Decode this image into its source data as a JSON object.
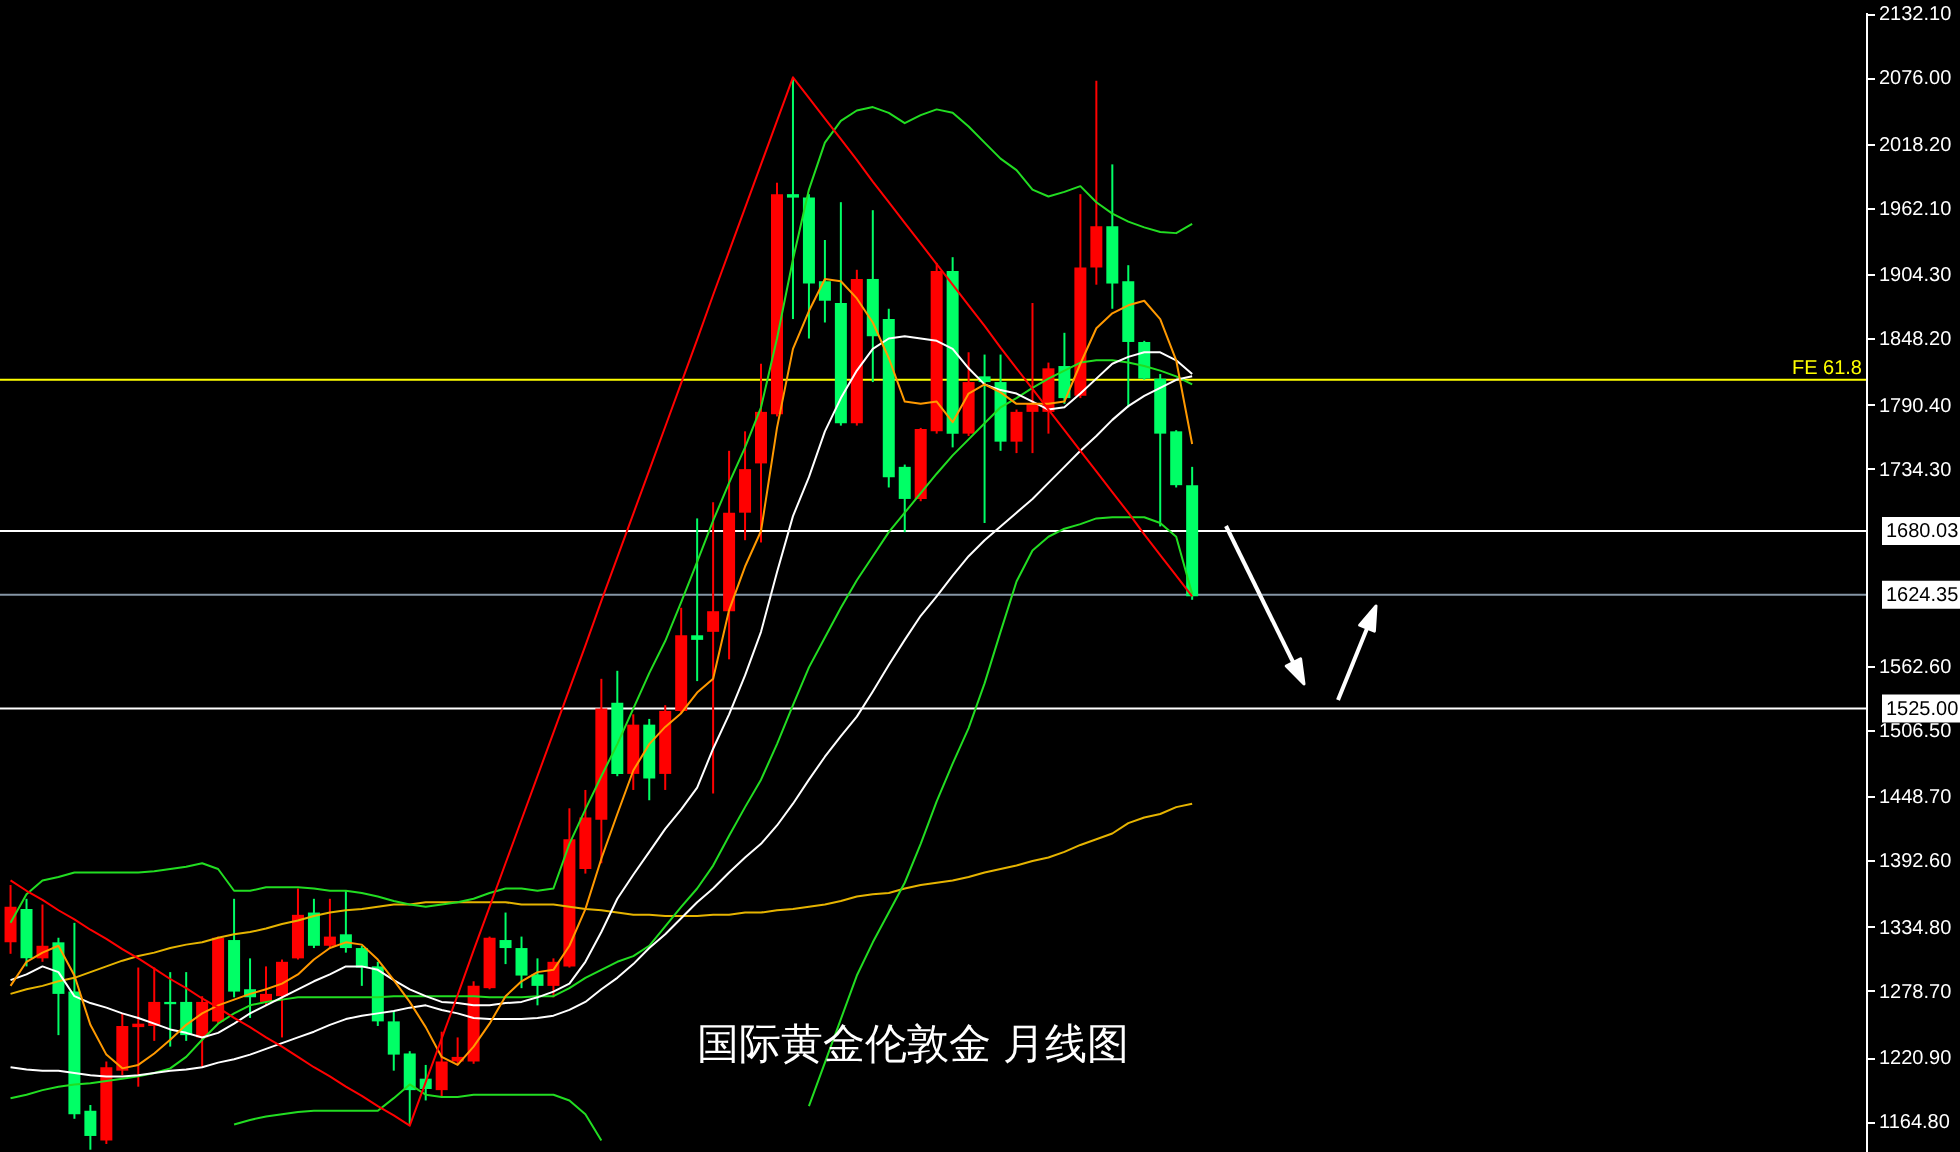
{
  "chart_data": {
    "type": "candlestick",
    "title": "国际黄金伦敦金 月线图",
    "categories": [
      null,
      null,
      null,
      null,
      null,
      null,
      null,
      null,
      null,
      null,
      null,
      null,
      null,
      null,
      null,
      null,
      null,
      null,
      null,
      null,
      null,
      null,
      null,
      null,
      null,
      null,
      null,
      null,
      null,
      null,
      null,
      null,
      null,
      null,
      null,
      null,
      null,
      null,
      null,
      null,
      null,
      null,
      null,
      null,
      null,
      null,
      null,
      null,
      null,
      null,
      null,
      null,
      null,
      null,
      null,
      null,
      null,
      null,
      null,
      null,
      null,
      null,
      null,
      null,
      null,
      null,
      null,
      null,
      null,
      null,
      null,
      null,
      null,
      null,
      null
    ],
    "ohlc": [
      [
        1321,
        1371,
        1311,
        1352
      ],
      [
        1350,
        1359,
        1300,
        1307
      ],
      [
        1307,
        1354,
        1304,
        1318
      ],
      [
        1321,
        1325,
        1240,
        1276
      ],
      [
        1278,
        1338,
        1167,
        1171
      ],
      [
        1174,
        1179,
        1140,
        1152
      ],
      [
        1148,
        1217,
        1145,
        1212
      ],
      [
        1209,
        1259,
        1205,
        1248
      ],
      [
        1247,
        1299,
        1195,
        1250
      ],
      [
        1248,
        1299,
        1235,
        1269
      ],
      [
        1269,
        1295,
        1230,
        1267
      ],
      [
        1269,
        1295,
        1235,
        1240
      ],
      [
        1238,
        1274,
        1212,
        1269
      ],
      [
        1252,
        1326,
        1250,
        1325
      ],
      [
        1323,
        1359,
        1273,
        1278
      ],
      [
        1280,
        1307,
        1255,
        1273
      ],
      [
        1269,
        1300,
        1266,
        1276
      ],
      [
        1274,
        1306,
        1238,
        1304
      ],
      [
        1307,
        1368,
        1306,
        1345
      ],
      [
        1347,
        1359,
        1316,
        1318
      ],
      [
        1318,
        1359,
        1316,
        1326
      ],
      [
        1328,
        1366,
        1312,
        1316
      ],
      [
        1316,
        1318,
        1283,
        1299
      ],
      [
        1300,
        1304,
        1248,
        1252
      ],
      [
        1252,
        1261,
        1209,
        1223
      ],
      [
        1224,
        1226,
        1162,
        1192
      ],
      [
        1202,
        1214,
        1183,
        1193
      ],
      [
        1192,
        1243,
        1186,
        1217
      ],
      [
        1217,
        1238,
        1214,
        1221
      ],
      [
        1217,
        1287,
        1215,
        1283
      ],
      [
        1281,
        1326,
        1280,
        1325
      ],
      [
        1323,
        1347,
        1302,
        1316
      ],
      [
        1316,
        1326,
        1281,
        1292
      ],
      [
        1293,
        1307,
        1266,
        1283
      ],
      [
        1283,
        1307,
        1273,
        1304
      ],
      [
        1300,
        1438,
        1299,
        1411
      ],
      [
        1385,
        1454,
        1381,
        1430
      ],
      [
        1428,
        1551,
        1390,
        1525
      ],
      [
        1530,
        1558,
        1466,
        1468
      ],
      [
        1468,
        1520,
        1454,
        1511
      ],
      [
        1511,
        1516,
        1445,
        1464
      ],
      [
        1468,
        1528,
        1454,
        1523
      ],
      [
        1523,
        1613,
        1521,
        1589
      ],
      [
        1589,
        1691,
        1549,
        1585
      ],
      [
        1592,
        1705,
        1451,
        1610
      ],
      [
        1610,
        1750,
        1568,
        1696
      ],
      [
        1696,
        1767,
        1672,
        1734
      ],
      [
        1739,
        1826,
        1670,
        1784
      ],
      [
        1782,
        1984,
        1780,
        1974
      ],
      [
        1974,
        2076,
        1865,
        1971
      ],
      [
        1971,
        1974,
        1848,
        1896
      ],
      [
        1898,
        1934,
        1862,
        1881
      ],
      [
        1879,
        1967,
        1772,
        1774
      ],
      [
        1774,
        1908,
        1772,
        1900
      ],
      [
        1900,
        1960,
        1810,
        1850
      ],
      [
        1865,
        1874,
        1718,
        1727
      ],
      [
        1736,
        1738,
        1679,
        1708
      ],
      [
        1708,
        1770,
        1706,
        1769
      ],
      [
        1767,
        1914,
        1765,
        1907
      ],
      [
        1907,
        1919,
        1753,
        1765
      ],
      [
        1765,
        1836,
        1763,
        1810
      ],
      [
        1815,
        1834,
        1687,
        1810
      ],
      [
        1810,
        1834,
        1750,
        1758
      ],
      [
        1758,
        1786,
        1748,
        1784
      ],
      [
        1784,
        1879,
        1748,
        1791
      ],
      [
        1784,
        1827,
        1765,
        1822
      ],
      [
        1824,
        1853,
        1791,
        1796
      ],
      [
        1798,
        1974,
        1796,
        1910
      ],
      [
        1910,
        2073,
        1895,
        1946
      ],
      [
        1946,
        2000,
        1874,
        1896
      ],
      [
        1898,
        1912,
        1788,
        1845
      ],
      [
        1845,
        1846,
        1812,
        1813
      ],
      [
        1813,
        1817,
        1684,
        1765
      ],
      [
        1767,
        1768,
        1718,
        1720
      ],
      [
        1720,
        1736,
        1620,
        1623
      ]
    ],
    "colors": [
      "#ff0000",
      "#00ff66",
      "#ff0000",
      "#00ff66",
      "#00ff66",
      "#00ff66",
      "#ff0000",
      "#ff0000",
      "#ff0000",
      "#ff0000",
      "#00ff66",
      "#00ff66",
      "#ff0000",
      "#ff0000",
      "#00ff66",
      "#00ff66",
      "#ff0000",
      "#ff0000",
      "#ff0000",
      "#00ff66",
      "#ff0000",
      "#00ff66",
      "#00ff66",
      "#00ff66",
      "#00ff66",
      "#00ff66",
      "#00ff66",
      "#ff0000",
      "#ff0000",
      "#ff0000",
      "#ff0000",
      "#00ff66",
      "#00ff66",
      "#00ff66",
      "#ff0000",
      "#ff0000",
      "#ff0000",
      "#ff0000",
      "#00ff66",
      "#ff0000",
      "#00ff66",
      "#ff0000",
      "#ff0000",
      "#00ff66",
      "#ff0000",
      "#ff0000",
      "#ff0000",
      "#ff0000",
      "#ff0000",
      "#00ff66",
      "#00ff66",
      "#00ff66",
      "#00ff66",
      "#ff0000",
      "#00ff66",
      "#00ff66",
      "#00ff66",
      "#ff0000",
      "#ff0000",
      "#00ff66",
      "#ff0000",
      "#00ff66",
      "#00ff66",
      "#ff0000",
      "#ff0000",
      "#ff0000",
      "#00ff66",
      "#ff0000",
      "#ff0000",
      "#00ff66",
      "#00ff66",
      "#00ff66",
      "#00ff66",
      "#00ff66",
      "#00ff66"
    ],
    "series": [
      {
        "type": "line",
        "color": "#e6b400",
        "values": [
          1276,
          1280,
          1283,
          1287,
          1290,
          1295,
          1300,
          1305,
          1309,
          1312,
          1316,
          1319,
          1321,
          1325,
          1328,
          1330,
          1333,
          1337,
          1340,
          1344,
          1347,
          1349,
          1350,
          1352,
          1354,
          1354,
          1356,
          1356,
          1356,
          1356,
          1356,
          1356,
          1354,
          1354,
          1354,
          1352,
          1350,
          1349,
          1347,
          1345,
          1345,
          1344,
          1344,
          1344,
          1345,
          1345,
          1347,
          1347,
          1349,
          1350,
          1352,
          1354,
          1357,
          1361,
          1363,
          1364,
          1368,
          1371,
          1373,
          1375,
          1378,
          1382,
          1385,
          1388,
          1392,
          1395,
          1400,
          1406,
          1411,
          1416,
          1425,
          1430,
          1433,
          1439,
          1442
        ]
      },
      {
        "type": "line",
        "color": "#22dd22",
        "values": [
          1338,
          1363,
          1375,
          1378,
          1382,
          1382,
          1382,
          1382,
          1382,
          1383,
          1385,
          1387,
          1390,
          1385,
          1366,
          1366,
          1369,
          1369,
          1369,
          1368,
          1366,
          1366,
          1364,
          1361,
          1357,
          1354,
          1352,
          1354,
          1356,
          1359,
          1364,
          1368,
          1368,
          1366,
          1368,
          1407,
          1437,
          1466,
          1494,
          1525,
          1556,
          1584,
          1618,
          1653,
          1689,
          1722,
          1753,
          1788,
          1848,
          1917,
          1978,
          2019,
          2038,
          2047,
          2050,
          2045,
          2036,
          2043,
          2048,
          2045,
          2033,
          2019,
          2005,
          1995,
          1978,
          1972,
          1976,
          1981,
          1967,
          1957,
          1950,
          1945,
          1941,
          1940,
          1948
        ]
      },
      {
        "type": "line",
        "color": "#22dd22",
        "values": [
          1185,
          1188,
          1192,
          1195,
          1197,
          1198,
          1200,
          1202,
          1204,
          1207,
          1211,
          1221,
          1236,
          1250,
          1259,
          1266,
          1269,
          1271,
          1273,
          1273,
          1273,
          1273,
          1273,
          1273,
          1274,
          1274,
          1274,
          1274,
          1274,
          1274,
          1273,
          1273,
          1273,
          1274,
          1274,
          1281,
          1290,
          1297,
          1304,
          1309,
          1318,
          1335,
          1352,
          1368,
          1388,
          1414,
          1439,
          1463,
          1494,
          1528,
          1561,
          1587,
          1613,
          1637,
          1658,
          1679,
          1696,
          1713,
          1730,
          1746,
          1760,
          1774,
          1788,
          1796,
          1805,
          1813,
          1820,
          1827,
          1829,
          1829,
          1827,
          1824,
          1820,
          1815,
          1808
        ]
      },
      {
        "type": "line",
        "color": "#22dd22",
        "values": [
          null,
          null,
          null,
          null,
          null,
          null,
          null,
          null,
          null,
          null,
          null,
          null,
          null,
          null,
          1162,
          1166,
          1169,
          1171,
          1173,
          1174,
          1174,
          1174,
          1174,
          1174,
          1185,
          1197,
          1188,
          1186,
          1186,
          1188,
          1188,
          1188,
          1188,
          1188,
          1188,
          1183,
          1171,
          1148,
          null,
          null,
          null,
          null,
          null,
          null,
          null,
          null,
          null,
          null,
          null,
          null,
          1178,
          1216,
          1254,
          1292,
          1321,
          1347,
          1373,
          1407,
          1444,
          1477,
          1508,
          1547,
          1592,
          1636,
          1663,
          1675,
          1682,
          1686,
          1691,
          1692,
          1692,
          1692,
          1687,
          1675,
          1625
        ]
      },
      {
        "type": "line",
        "color": "#ffffff",
        "values": [
          1212,
          1210,
          1209,
          1209,
          1207,
          1205,
          1204,
          1204,
          1205,
          1207,
          1209,
          1210,
          1212,
          1216,
          1219,
          1223,
          1228,
          1233,
          1238,
          1243,
          1249,
          1254,
          1257,
          1259,
          1261,
          1264,
          1266,
          1262,
          1259,
          1255,
          1254,
          1254,
          1254,
          1255,
          1257,
          1262,
          1269,
          1280,
          1290,
          1302,
          1316,
          1328,
          1342,
          1356,
          1368,
          1382,
          1395,
          1407,
          1423,
          1442,
          1463,
          1483,
          1501,
          1518,
          1540,
          1563,
          1585,
          1606,
          1623,
          1641,
          1658,
          1672,
          1684,
          1696,
          1708,
          1722,
          1736,
          1750,
          1763,
          1777,
          1789,
          1798,
          1805,
          1812,
          1815
        ]
      },
      {
        "type": "line",
        "color": "#ffffff",
        "values": [
          1288,
          1293,
          1300,
          1295,
          1274,
          1268,
          1264,
          1259,
          1255,
          1250,
          1245,
          1242,
          1238,
          1242,
          1250,
          1259,
          1266,
          1273,
          1280,
          1287,
          1293,
          1300,
          1300,
          1297,
          1288,
          1280,
          1274,
          1269,
          1268,
          1266,
          1266,
          1268,
          1269,
          1273,
          1278,
          1285,
          1304,
          1330,
          1359,
          1380,
          1400,
          1420,
          1437,
          1456,
          1490,
          1520,
          1554,
          1592,
          1644,
          1693,
          1727,
          1767,
          1796,
          1820,
          1839,
          1848,
          1850,
          1848,
          1846,
          1839,
          1822,
          1808,
          1803,
          1800,
          1793,
          1786,
          1788,
          1800,
          1813,
          1826,
          1832,
          1836,
          1836,
          1829,
          1817
        ]
      },
      {
        "type": "line",
        "color": "#ff9900",
        "values": [
          1283,
          1304,
          1312,
          1318,
          1292,
          1249,
          1223,
          1211,
          1214,
          1224,
          1236,
          1249,
          1259,
          1266,
          1271,
          1276,
          1280,
          1285,
          1293,
          1306,
          1316,
          1321,
          1319,
          1306,
          1288,
          1269,
          1247,
          1221,
          1214,
          1230,
          1250,
          1274,
          1287,
          1295,
          1297,
          1318,
          1350,
          1394,
          1433,
          1471,
          1494,
          1509,
          1521,
          1539,
          1551,
          1611,
          1649,
          1680,
          1770,
          1839,
          1872,
          1900,
          1898,
          1883,
          1862,
          1831,
          1793,
          1791,
          1793,
          1775,
          1800,
          1808,
          1801,
          1791,
          1791,
          1791,
          1793,
          1826,
          1857,
          1870,
          1877,
          1881,
          1865,
          1829,
          1756
        ]
      },
      {
        "type": "line",
        "color": "#ff0000",
        "values": [
          1375,
          1366,
          1358,
          1349,
          1341,
          1332,
          1324,
          1315,
          1307,
          1298,
          1289,
          1281,
          1272,
          1264,
          1255,
          1247,
          1238,
          1230,
          1221,
          1212,
          1204,
          1195,
          1187,
          1178,
          1170,
          1161,
          1199,
          1237,
          1275,
          1314,
          1352,
          1390,
          1428,
          1466,
          1504,
          1542,
          1580,
          1619,
          1657,
          1695,
          1733,
          1771,
          1809,
          1847,
          1886,
          1924,
          1962,
          2000,
          2038,
          2076,
          2058,
          2040,
          2022,
          2004,
          1985,
          1967,
          1949,
          1931,
          1913,
          1895,
          1877,
          1859,
          1840,
          1822,
          1804,
          1786,
          1768,
          1750,
          1732,
          1714,
          1696,
          1677,
          1659,
          1641,
          1623
        ]
      }
    ],
    "ylim": [
      1138,
      2133
    ],
    "yticks": [
      {
        "value": 2132.1,
        "label": "2132.10"
      },
      {
        "value": 2076,
        "label": "2076.00"
      },
      {
        "value": 2018.2,
        "label": "2018.20"
      },
      {
        "value": 1962.1,
        "label": "1962.10"
      },
      {
        "value": 1904.3,
        "label": "1904.30"
      },
      {
        "value": 1848.2,
        "label": "1848.20"
      },
      {
        "value": 1790.4,
        "label": "1790.40"
      },
      {
        "value": 1734.3,
        "label": "1734.30"
      },
      {
        "value": 1562.6,
        "label": "1562.60"
      },
      {
        "value": 1506.5,
        "label": "1506.50"
      },
      {
        "value": 1448.7,
        "label": "1448.70"
      },
      {
        "value": 1392.6,
        "label": "1392.60"
      },
      {
        "value": 1334.8,
        "label": "1334.80"
      },
      {
        "value": 1278.7,
        "label": "1278.70"
      },
      {
        "value": 1220.9,
        "label": "1220.90"
      },
      {
        "value": 1164.8,
        "label": "1164.80"
      }
    ],
    "ref_lines": [
      {
        "axis": "y",
        "value": 1812,
        "label": "FE 61.8",
        "color": "#ffff00"
      },
      {
        "axis": "y",
        "value": 1680.03,
        "label": "1680.03",
        "color": "#ffffff"
      },
      {
        "axis": "y",
        "value": 1624.35,
        "label": "1624.35",
        "color": "#8595a5"
      },
      {
        "axis": "y",
        "value": 1525,
        "label": "1525.00",
        "color": "#ffffff"
      }
    ]
  }
}
